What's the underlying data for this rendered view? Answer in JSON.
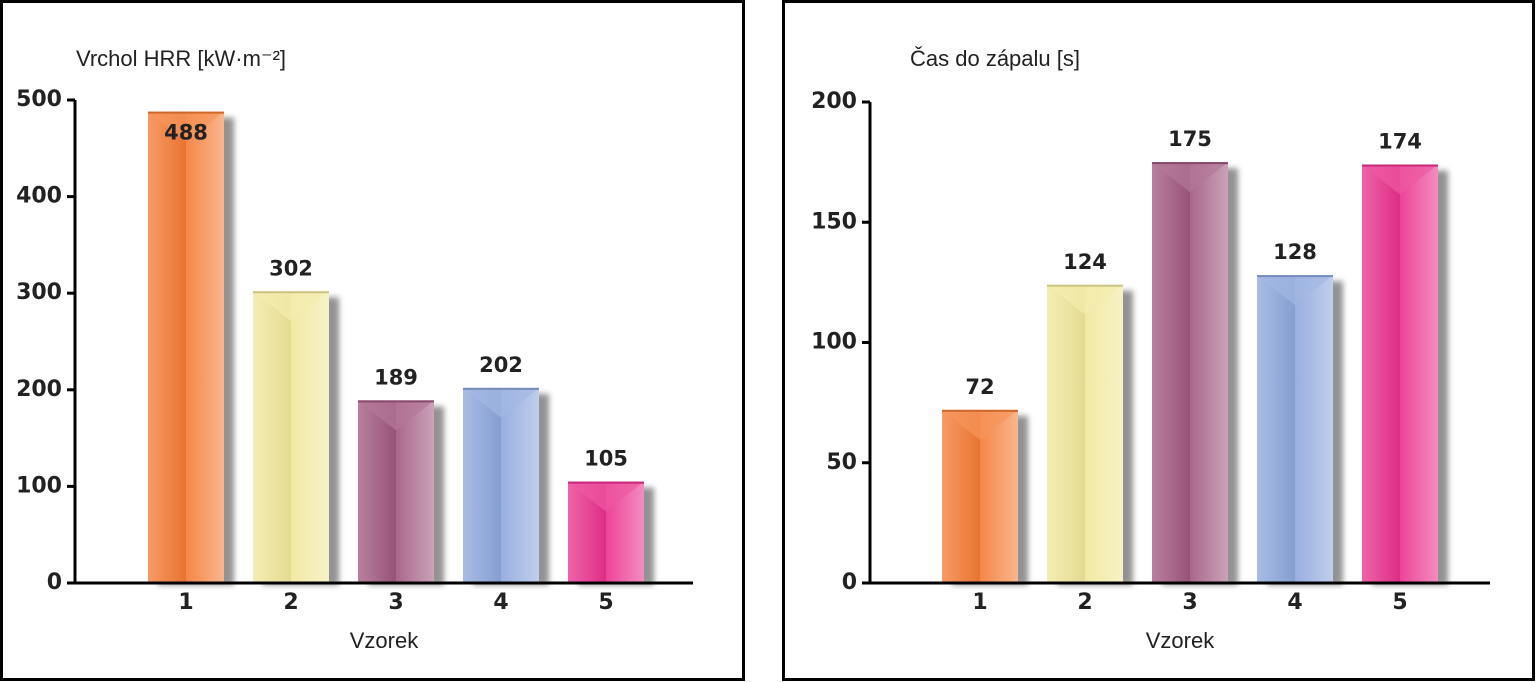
{
  "chart_data": [
    {
      "type": "bar",
      "title": "Vrchol HRR [kW·m⁻²]",
      "x_label": "Vzorek",
      "categories": [
        "1",
        "2",
        "3",
        "4",
        "5"
      ],
      "values": [
        488,
        302,
        189,
        202,
        105
      ],
      "colors": [
        "#f47a32",
        "#f0e79a",
        "#a0567e",
        "#8ca6dc",
        "#ea2f8c"
      ],
      "ylim": [
        0,
        500
      ],
      "yticks": [
        0,
        100,
        200,
        300,
        400,
        500
      ]
    },
    {
      "type": "bar",
      "title": "Čas do zápalu [s]",
      "x_label": "Vzorek",
      "categories": [
        "1",
        "2",
        "3",
        "4",
        "5"
      ],
      "values": [
        72,
        124,
        175,
        128,
        174
      ],
      "colors": [
        "#f47a32",
        "#f0e79a",
        "#a0567e",
        "#8ca6dc",
        "#ea2f8c"
      ],
      "ylim": [
        0,
        200
      ],
      "yticks": [
        0,
        50,
        100,
        150,
        200
      ]
    }
  ]
}
